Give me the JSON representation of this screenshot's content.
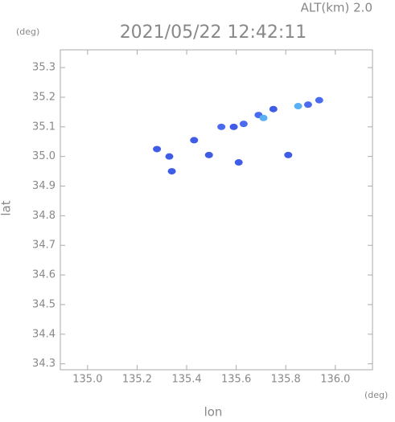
{
  "chart_data": {
    "type": "scatter",
    "annotation": "ALT(km) 2.0",
    "title": "2021/05/22 12:42:11",
    "y_unit": "(deg)",
    "x_unit": "(deg)",
    "xlabel": "lon",
    "ylabel": "lat",
    "x": [
      135.28,
      135.33,
      135.34,
      135.43,
      135.49,
      135.54,
      135.59,
      135.61,
      135.63,
      135.69,
      135.71,
      135.75,
      135.81,
      135.85,
      135.89,
      135.935
    ],
    "y": [
      35.025,
      35.0,
      34.95,
      35.055,
      35.005,
      35.1,
      35.1,
      34.98,
      35.11,
      35.14,
      35.13,
      35.16,
      35.005,
      35.17,
      35.175,
      35.19
    ],
    "colors": [
      "#3f5ce6",
      "#3f5ce6",
      "#3f5ce6",
      "#3f5ce6",
      "#3f5ce6",
      "#4a6af0",
      "#3f5ce6",
      "#3f5ce6",
      "#4a6af0",
      "#4a6af0",
      "#5ab0f2",
      "#3f5ce6",
      "#3f5ce6",
      "#5ab0f2",
      "#4a6af0",
      "#4a6af0"
    ],
    "xlim": [
      134.89,
      136.15
    ],
    "ylim": [
      34.28,
      35.36
    ],
    "xticks": [
      {
        "value": 135.0,
        "label": "135.0"
      },
      135.2,
      135.4,
      135.6,
      135.8,
      {
        "value": 136.0,
        "label": "136.0"
      }
    ],
    "yticks": [
      35.3,
      35.2,
      35.1,
      {
        "value": 35.0,
        "label": "35.0"
      },
      34.9,
      34.8,
      34.7,
      34.6,
      34.5,
      34.4,
      34.3
    ]
  }
}
